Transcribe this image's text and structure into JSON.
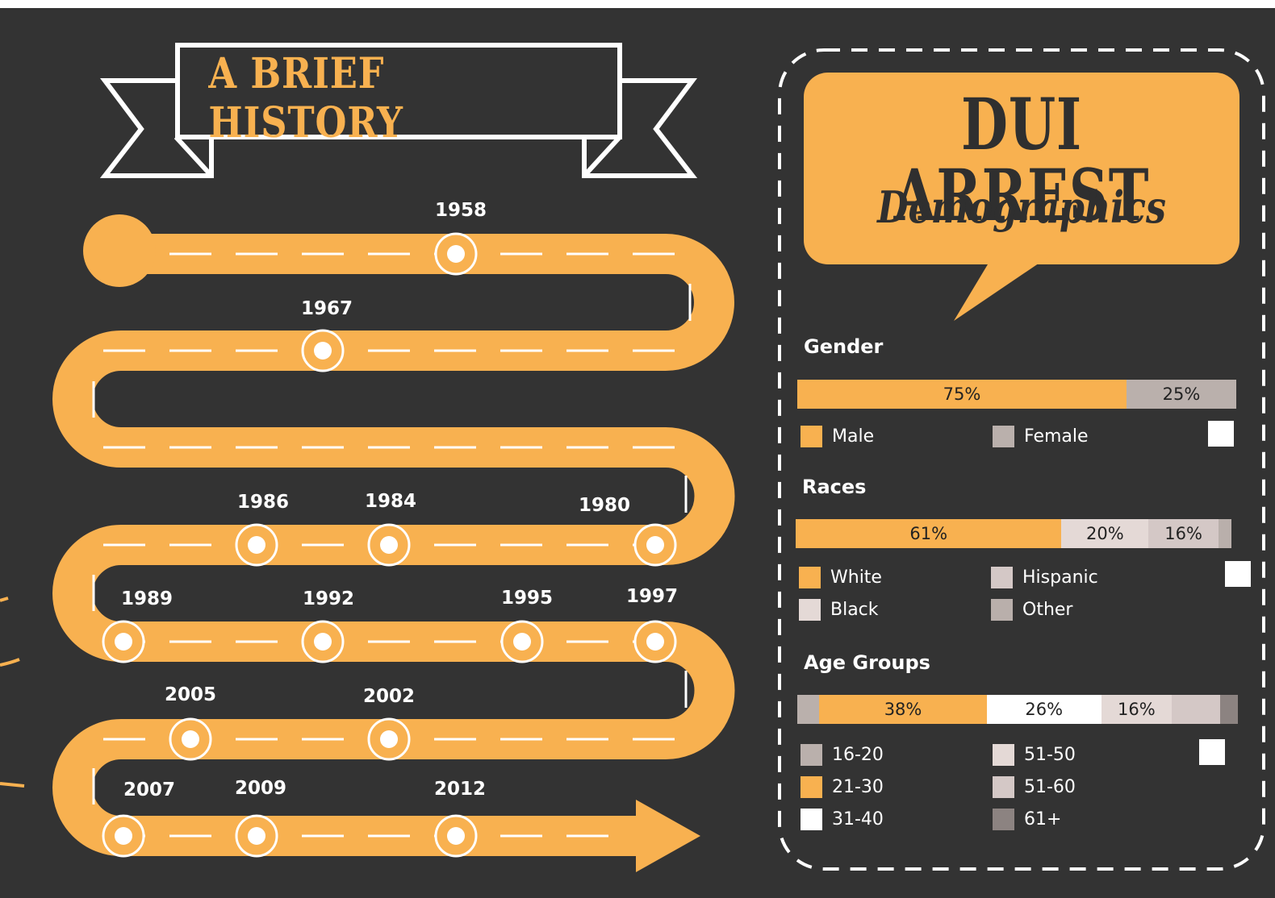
{
  "history": {
    "banner_title": "A BRIEF HISTORY",
    "years": [
      "1958",
      "1967",
      "1986",
      "1984",
      "1980",
      "1989",
      "1992",
      "1995",
      "1997",
      "2005",
      "2002",
      "2007",
      "2009",
      "2012"
    ]
  },
  "demographics": {
    "title": "DUI ARREST",
    "subtitle": "Demographics",
    "gender": {
      "title": "Gender",
      "segments": [
        {
          "label": "75%",
          "value": 75,
          "color": "#f8b150"
        },
        {
          "label": "25%",
          "value": 25,
          "color": "#bab0ac"
        }
      ],
      "legend": [
        {
          "label": "Male",
          "color": "#f8b150"
        },
        {
          "label": "Female",
          "color": "#bab0ac"
        }
      ]
    },
    "races": {
      "title": "Races",
      "segments": [
        {
          "label": "61%",
          "value": 61,
          "color": "#f8b150"
        },
        {
          "label": "20%",
          "value": 20,
          "color": "#e4d9d6"
        },
        {
          "label": "16%",
          "value": 16,
          "color": "#d4c8c6"
        },
        {
          "label": "",
          "value": 3,
          "color": "#b9afab"
        }
      ],
      "legend": [
        {
          "label": "White",
          "color": "#f8b150"
        },
        {
          "label": "Hispanic",
          "color": "#d4c8c6"
        },
        {
          "label": "Black",
          "color": "#e4d9d6"
        },
        {
          "label": "Other",
          "color": "#b9afab"
        }
      ]
    },
    "age": {
      "title": "Age Groups",
      "segments": [
        {
          "label": "",
          "value": 5,
          "color": "#bab0ac"
        },
        {
          "label": "38%",
          "value": 38,
          "color": "#f8b150"
        },
        {
          "label": "26%",
          "value": 26,
          "color": "#ffffff"
        },
        {
          "label": "16%",
          "value": 16,
          "color": "#e4d9d6"
        },
        {
          "label": "",
          "value": 11,
          "color": "#d4c8c6"
        },
        {
          "label": "",
          "value": 4,
          "color": "#8c8381"
        }
      ],
      "legend": [
        {
          "label": "16-20",
          "color": "#bab0ac"
        },
        {
          "label": "51-50",
          "color": "#e4d9d6"
        },
        {
          "label": "21-30",
          "color": "#f8b150"
        },
        {
          "label": "51-60",
          "color": "#d4c8c6"
        },
        {
          "label": "31-40",
          "color": "#ffffff"
        },
        {
          "label": "61+",
          "color": "#8c8381"
        }
      ]
    }
  },
  "colors": {
    "background": "#333333",
    "accent": "#f8b150",
    "text": "#ffffff"
  }
}
